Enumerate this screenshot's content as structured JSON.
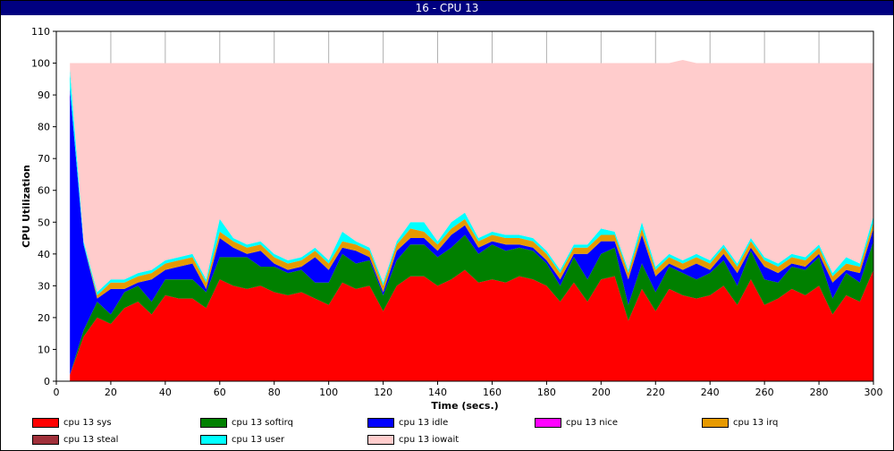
{
  "window": {
    "title": "16 - CPU 13"
  },
  "chart_data": {
    "type": "area",
    "stacked": true,
    "title": "16 - CPU 13",
    "xlabel": "Time (secs.)",
    "ylabel": "CPU Utilization",
    "xlim": [
      0,
      300
    ],
    "ylim": [
      0,
      110
    ],
    "xticks": [
      0,
      20,
      40,
      60,
      80,
      100,
      120,
      140,
      160,
      180,
      200,
      220,
      240,
      260,
      280,
      300
    ],
    "yticks": [
      0,
      10,
      20,
      30,
      40,
      50,
      60,
      70,
      80,
      90,
      100,
      110
    ],
    "grid": true,
    "legend_position": "bottom",
    "x": [
      5,
      10,
      15,
      20,
      25,
      30,
      35,
      40,
      45,
      50,
      55,
      60,
      65,
      70,
      75,
      80,
      85,
      90,
      95,
      100,
      105,
      110,
      115,
      120,
      125,
      130,
      135,
      140,
      145,
      150,
      155,
      160,
      165,
      170,
      175,
      180,
      185,
      190,
      195,
      200,
      205,
      210,
      215,
      220,
      225,
      230,
      235,
      240,
      245,
      250,
      255,
      260,
      265,
      270,
      275,
      280,
      285,
      290,
      295,
      300
    ],
    "series": [
      {
        "name": "cpu 13 sys",
        "color": "#ff0000",
        "values": [
          2,
          14,
          20,
          18,
          23,
          25,
          21,
          27,
          26,
          26,
          23,
          32,
          30,
          29,
          30,
          28,
          27,
          28,
          26,
          24,
          31,
          29,
          30,
          22,
          30,
          33,
          33,
          30,
          32,
          35,
          31,
          32,
          31,
          33,
          32,
          30,
          25,
          31,
          25,
          32,
          33,
          19,
          29,
          22,
          29,
          27,
          26,
          27,
          30,
          24,
          32,
          24,
          26,
          29,
          27,
          30,
          21,
          27,
          25,
          35
        ]
      },
      {
        "name": "cpu 13 softirq",
        "color": "#008000",
        "values": [
          0,
          2,
          5,
          3,
          5,
          5,
          4,
          5,
          6,
          6,
          5,
          7,
          9,
          10,
          6,
          8,
          7,
          7,
          5,
          7,
          9,
          8,
          8,
          5,
          8,
          10,
          10,
          9,
          10,
          11,
          9,
          11,
          10,
          9,
          9,
          7,
          5,
          8,
          7,
          8,
          9,
          5,
          8,
          6,
          7,
          7,
          6,
          7,
          8,
          6,
          9,
          8,
          5,
          7,
          8,
          9,
          5,
          7,
          6,
          9
        ]
      },
      {
        "name": "cpu 13 idle",
        "color": "#0000ff",
        "values": [
          90,
          27,
          1,
          8,
          1,
          1,
          7,
          3,
          4,
          5,
          1,
          6,
          3,
          1,
          5,
          1,
          1,
          1,
          8,
          4,
          2,
          4,
          1,
          1,
          3,
          2,
          2,
          2,
          4,
          3,
          2,
          1,
          2,
          1,
          1,
          1,
          2,
          1,
          8,
          4,
          2,
          8,
          9,
          5,
          1,
          1,
          5,
          1,
          2,
          4,
          1,
          4,
          3,
          1,
          1,
          1,
          5,
          1,
          3,
          4
        ]
      },
      {
        "name": "cpu 13 nice",
        "color": "#ff00ff",
        "values": [
          0,
          0,
          0,
          0,
          0,
          0,
          0,
          0,
          0,
          0,
          0,
          0,
          0,
          0,
          0,
          0,
          0,
          0,
          0,
          0,
          0,
          0,
          0,
          0,
          0,
          0,
          0,
          0,
          0,
          0,
          0,
          0,
          0,
          0,
          0,
          0,
          0,
          0,
          0,
          0,
          0,
          0,
          0,
          0,
          0,
          0,
          0,
          0,
          0,
          0,
          0,
          0,
          0,
          0,
          0,
          0,
          0,
          0,
          0,
          0
        ]
      },
      {
        "name": "cpu 13 irq",
        "color": "#e69900",
        "values": [
          0,
          0,
          1,
          2,
          2,
          2,
          2,
          2,
          2,
          2,
          2,
          2,
          2,
          2,
          2,
          2,
          2,
          2,
          2,
          2,
          2,
          2,
          2,
          2,
          2,
          3,
          2,
          2,
          2,
          2,
          2,
          2,
          2,
          2,
          2,
          2,
          2,
          2,
          2,
          2,
          2,
          2,
          2,
          2,
          2,
          2,
          2,
          2,
          2,
          2,
          2,
          2,
          2,
          2,
          2,
          2,
          2,
          2,
          2,
          2
        ]
      },
      {
        "name": "cpu 13 steal",
        "color": "#a0303a",
        "values": [
          0,
          0,
          0,
          0,
          0,
          0,
          0,
          0,
          0,
          0,
          0,
          0,
          0,
          0,
          0,
          0,
          0,
          0,
          0,
          0,
          0,
          0,
          0,
          0,
          0,
          0,
          0,
          0,
          0,
          0,
          0,
          0,
          0,
          0,
          0,
          0,
          0,
          0,
          0,
          0,
          0,
          0,
          0,
          0,
          0,
          0,
          0,
          0,
          0,
          0,
          0,
          0,
          0,
          0,
          0,
          0,
          0,
          0,
          0,
          0
        ]
      },
      {
        "name": "cpu 13 user",
        "color": "#00ffff",
        "values": [
          6,
          1,
          1,
          1,
          1,
          1,
          1,
          1,
          1,
          1,
          1,
          4,
          1,
          1,
          1,
          1,
          1,
          1,
          1,
          1,
          3,
          1,
          1,
          1,
          1,
          2,
          3,
          1,
          2,
          2,
          1,
          1,
          1,
          1,
          1,
          1,
          1,
          1,
          1,
          2,
          1,
          1,
          2,
          1,
          1,
          1,
          1,
          1,
          1,
          1,
          1,
          1,
          1,
          1,
          1,
          1,
          1,
          2,
          1,
          2
        ]
      },
      {
        "name": "cpu 13 iowait",
        "color": "#ffcccc",
        "values": [
          2,
          56,
          72,
          68,
          68,
          66,
          65,
          62,
          61,
          60,
          68,
          49,
          55,
          57,
          56,
          60,
          62,
          61,
          58,
          62,
          53,
          56,
          58,
          69,
          56,
          50,
          50,
          56,
          50,
          47,
          55,
          53,
          54,
          54,
          55,
          59,
          65,
          57,
          57,
          52,
          53,
          65,
          50,
          64,
          60,
          63,
          60,
          62,
          57,
          63,
          55,
          61,
          63,
          60,
          61,
          57,
          66,
          61,
          63,
          48
        ]
      }
    ],
    "legend": [
      "cpu 13 sys",
      "cpu 13 softirq",
      "cpu 13 idle",
      "cpu 13 nice",
      "cpu 13 irq",
      "cpu 13 steal",
      "cpu 13 user",
      "cpu 13 iowait"
    ]
  }
}
